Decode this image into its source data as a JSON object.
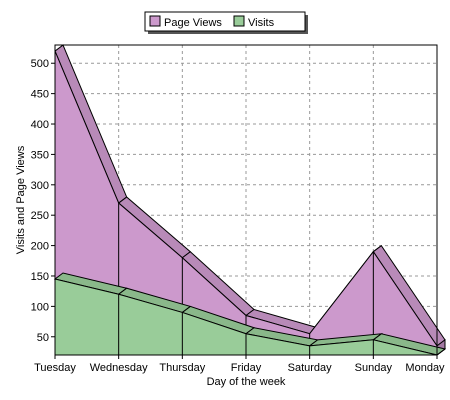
{
  "chart_data": {
    "type": "area",
    "stacked": false,
    "three_d": true,
    "categories": [
      "Tuesday",
      "Wednesday",
      "Thursday",
      "Friday",
      "Saturday",
      "Sunday",
      "Monday"
    ],
    "series": [
      {
        "name": "Page Views",
        "values": [
          520,
          270,
          180,
          85,
          55,
          190,
          35
        ],
        "color": "#cc99cc"
      },
      {
        "name": "Visits",
        "values": [
          145,
          120,
          90,
          55,
          35,
          45,
          20
        ],
        "color": "#99cc99"
      }
    ],
    "xlabel": "Day of the week",
    "ylabel": "Visits and Page Views",
    "y_ticks": [
      50,
      100,
      150,
      200,
      250,
      300,
      350,
      400,
      450,
      500
    ],
    "ylim": [
      20,
      530
    ],
    "grid": true,
    "legend_position": "top-center"
  }
}
